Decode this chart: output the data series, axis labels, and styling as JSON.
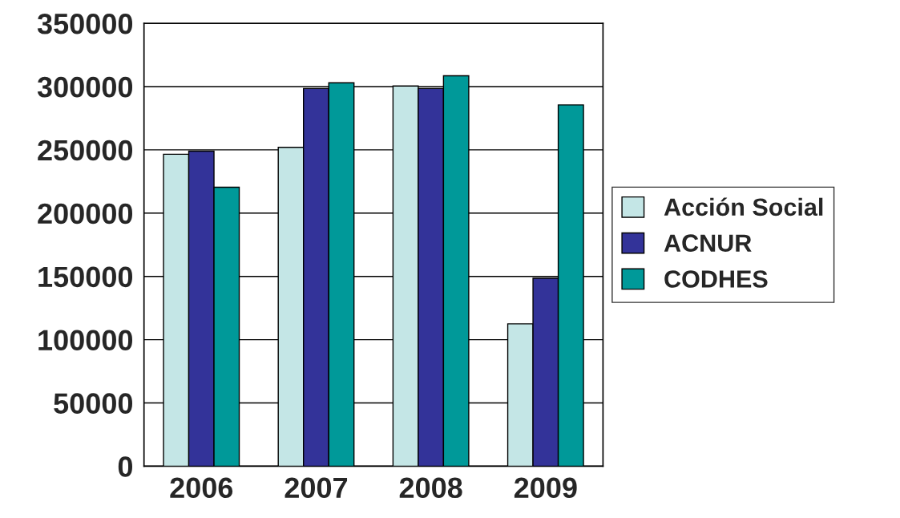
{
  "chart_data": {
    "type": "bar",
    "categories": [
      "2006",
      "2007",
      "2008",
      "2009"
    ],
    "series": [
      {
        "name": "Acción Social",
        "color": "#c4e6e6",
        "values": [
          246500,
          252000,
          300500,
          112500
        ]
      },
      {
        "name": "ACNUR",
        "color": "#333399",
        "values": [
          249000,
          298500,
          298500,
          148500
        ]
      },
      {
        "name": "CODHES",
        "color": "#009999",
        "values": [
          220500,
          303000,
          308500,
          285500
        ]
      }
    ],
    "ylim": [
      0,
      350000
    ],
    "yticks": [
      0,
      50000,
      100000,
      150000,
      200000,
      250000,
      300000,
      350000
    ],
    "grid": "y",
    "legend": "right"
  }
}
